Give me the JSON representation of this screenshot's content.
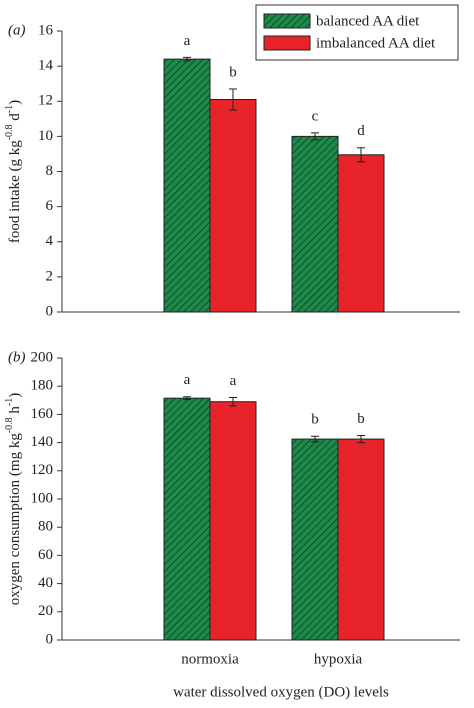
{
  "chart_data": [
    {
      "type": "bar",
      "panel_label": "(a)",
      "y_label": [
        {
          "text": "food intake (g kg"
        },
        {
          "text": "-0.8",
          "sup": true
        },
        {
          "text": " d"
        },
        {
          "text": "-1",
          "sup": true
        },
        {
          "text": ")"
        }
      ],
      "categories": [
        null,
        null
      ],
      "series": [
        {
          "name": "balanced AA diet",
          "color": "#1e8a4a",
          "hatch": true,
          "values": [
            14.4,
            10.0
          ],
          "errors": [
            0.1,
            0.2
          ],
          "letters": [
            "a",
            "c"
          ]
        },
        {
          "name": "imbalanced AA diet",
          "color": "#e8232a",
          "hatch": false,
          "values": [
            12.1,
            8.95
          ],
          "errors": [
            0.6,
            0.4
          ],
          "letters": [
            "b",
            "d"
          ]
        }
      ],
      "ylim": [
        0,
        16
      ],
      "yticks": [
        0,
        2,
        4,
        6,
        8,
        10,
        12,
        14,
        16
      ],
      "legend": "top-right"
    },
    {
      "type": "bar",
      "panel_label": "(b)",
      "y_label": [
        {
          "text": "oxygen consumption (mg kg"
        },
        {
          "text": "-0.8",
          "sup": true
        },
        {
          "text": " h"
        },
        {
          "text": "-1",
          "sup": true
        },
        {
          "text": ")"
        }
      ],
      "x_label": "water dissolved oxygen (DO) levels",
      "categories": [
        "normoxia",
        "hypoxia"
      ],
      "series": [
        {
          "color": "#1e8a4a",
          "hatch": true,
          "values": [
            171.5,
            142.5
          ],
          "errors": [
            1,
            2
          ],
          "letters": [
            "a",
            "b"
          ]
        },
        {
          "color": "#e8232a",
          "hatch": false,
          "values": [
            169,
            142.5
          ],
          "errors": [
            3,
            2.5
          ],
          "letters": [
            "a",
            "b"
          ]
        }
      ],
      "ylim": [
        0,
        200
      ],
      "yticks": [
        0,
        20,
        40,
        60,
        80,
        100,
        120,
        140,
        160,
        180,
        200
      ]
    }
  ]
}
